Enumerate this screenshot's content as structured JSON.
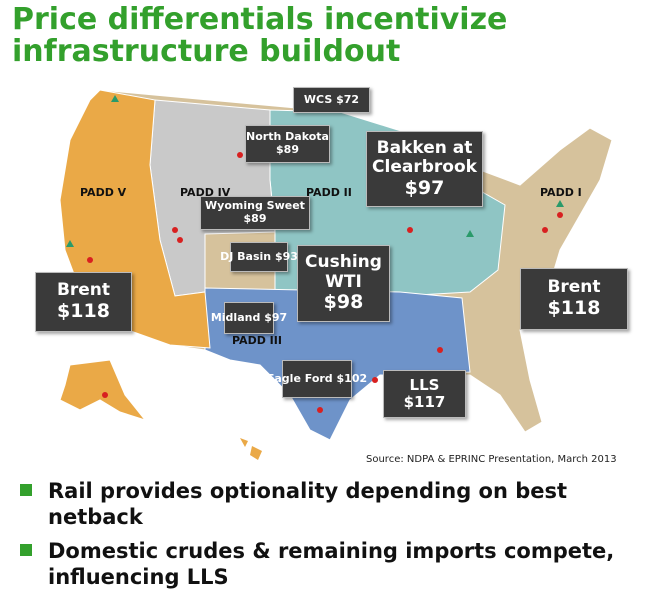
{
  "header": {
    "title_lines": [
      "Price differentials incentivize",
      "infrastructure buildout"
    ]
  },
  "map": {
    "regions": [
      "PADD V",
      "PADD IV",
      "PADD II",
      "PADD I",
      "PADD III"
    ],
    "price_boxes": [
      {
        "name": "WCS",
        "price": "$72"
      },
      {
        "name": "North Dakota",
        "price": "$89"
      },
      {
        "name": "Bakken at Clearbrook",
        "price": "$97"
      },
      {
        "name": "Wyoming Sweet",
        "price": "$89"
      },
      {
        "name": "DJ Basin",
        "price": "$93"
      },
      {
        "name": "Cushing WTI",
        "price": "$98"
      },
      {
        "name": "Brent",
        "price": "$118"
      },
      {
        "name": "Brent",
        "price": "$118"
      },
      {
        "name": "Midland",
        "price": "$97"
      },
      {
        "name": "Eagle Ford",
        "price": "$102"
      },
      {
        "name": "LLS",
        "price": "$117"
      }
    ],
    "source": "Source: NDPA & EPRINC Presentation, March 2013"
  },
  "bullets": [
    "Rail provides optionality depending on best netback",
    "Domestic crudes & remaining imports compete, influencing LLS"
  ]
}
